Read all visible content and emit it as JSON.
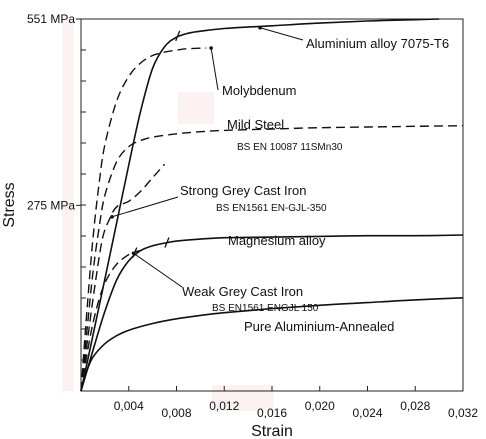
{
  "chart_data": {
    "type": "line",
    "title": "",
    "xlabel": "Strain",
    "ylabel": "Stress",
    "xlim": [
      0,
      0.032
    ],
    "ylim": [
      0,
      551
    ],
    "x_ticks": [
      0.004,
      0.008,
      0.012,
      0.016,
      0.02,
      0.024,
      0.028,
      0.032
    ],
    "x_tick_labels": [
      "0,004",
      "0,008",
      "0,012",
      "0,016",
      "0,020",
      "0,024",
      "0,028",
      "0,032"
    ],
    "y_ticks": [
      275,
      551
    ],
    "y_tick_labels": [
      "275 MPa",
      "551 MPa"
    ],
    "grid": false,
    "series": [
      {
        "name": "Aluminium alloy 7075-T6",
        "style": "solid",
        "x": [
          0,
          0.001,
          0.002,
          0.003,
          0.004,
          0.005,
          0.006,
          0.007,
          0.008,
          0.009,
          0.01,
          0.012,
          0.016,
          0.02,
          0.024,
          0.028,
          0.03
        ],
        "y": [
          0,
          82,
          166,
          250,
          335,
          415,
          478,
          510,
          524,
          530,
          533,
          537,
          541,
          545,
          548,
          550,
          551
        ]
      },
      {
        "name": "Molybdenum",
        "style": "dashed",
        "x": [
          0,
          0.0005,
          0.001,
          0.0015,
          0.002,
          0.003,
          0.004,
          0.005,
          0.006,
          0.007,
          0.008,
          0.009,
          0.0105
        ],
        "y": [
          0,
          120,
          225,
          305,
          365,
          430,
          466,
          486,
          497,
          502,
          505,
          507,
          508
        ]
      },
      {
        "name": "Mild Steel",
        "sublabel": "BS EN 10087 11SMn30",
        "style": "dashed",
        "x": [
          0,
          0.0005,
          0.001,
          0.0015,
          0.002,
          0.003,
          0.004,
          0.005,
          0.006,
          0.008,
          0.01,
          0.012,
          0.016,
          0.02,
          0.024,
          0.028,
          0.032
        ],
        "y": [
          0,
          90,
          175,
          240,
          290,
          340,
          362,
          371,
          376,
          381,
          384,
          386,
          388,
          390,
          391,
          392,
          393
        ]
      },
      {
        "name": "Strong Grey Cast Iron",
        "sublabel": "BS EN1561 EN-GJL-350",
        "style": "dashed",
        "x": [
          0,
          0.0006,
          0.0012,
          0.0018,
          0.0024,
          0.003,
          0.004,
          0.005,
          0.006,
          0.007
        ],
        "y": [
          0,
          83,
          160,
          226,
          255,
          273,
          281,
          296,
          316,
          336
        ]
      },
      {
        "name": "Magnesium alloy",
        "style": "solid",
        "x": [
          0,
          0.001,
          0.002,
          0.003,
          0.004,
          0.005,
          0.006,
          0.007,
          0.008,
          0.01,
          0.012,
          0.016,
          0.02,
          0.024,
          0.028,
          0.032
        ],
        "y": [
          0,
          60,
          118,
          165,
          193,
          208,
          215,
          219,
          222,
          225,
          227,
          228,
          229,
          230,
          230,
          231
        ]
      },
      {
        "name": "Weak Grey Cast Iron",
        "sublabel": "BS EN1561 ENGJL 150",
        "style": "dashed",
        "x": [
          0,
          0.0005,
          0.001,
          0.0015,
          0.002,
          0.0025,
          0.003,
          0.0035,
          0.004,
          0.0045,
          0.005
        ],
        "y": [
          0,
          55,
          100,
          135,
          160,
          176,
          188,
          196,
          202,
          206,
          208
        ]
      },
      {
        "name": "Pure Aluminium-Annealed",
        "style": "solid",
        "x": [
          0,
          0.0005,
          0.001,
          0.002,
          0.003,
          0.004,
          0.006,
          0.008,
          0.01,
          0.012,
          0.016,
          0.02,
          0.024,
          0.028,
          0.032
        ],
        "y": [
          0,
          30,
          50,
          70,
          82,
          90,
          100,
          107,
          112,
          116,
          122,
          127,
          131,
          135,
          138
        ]
      }
    ]
  },
  "colors": {
    "line": "#111111",
    "axis": "#222222",
    "background": "#ffffff"
  }
}
